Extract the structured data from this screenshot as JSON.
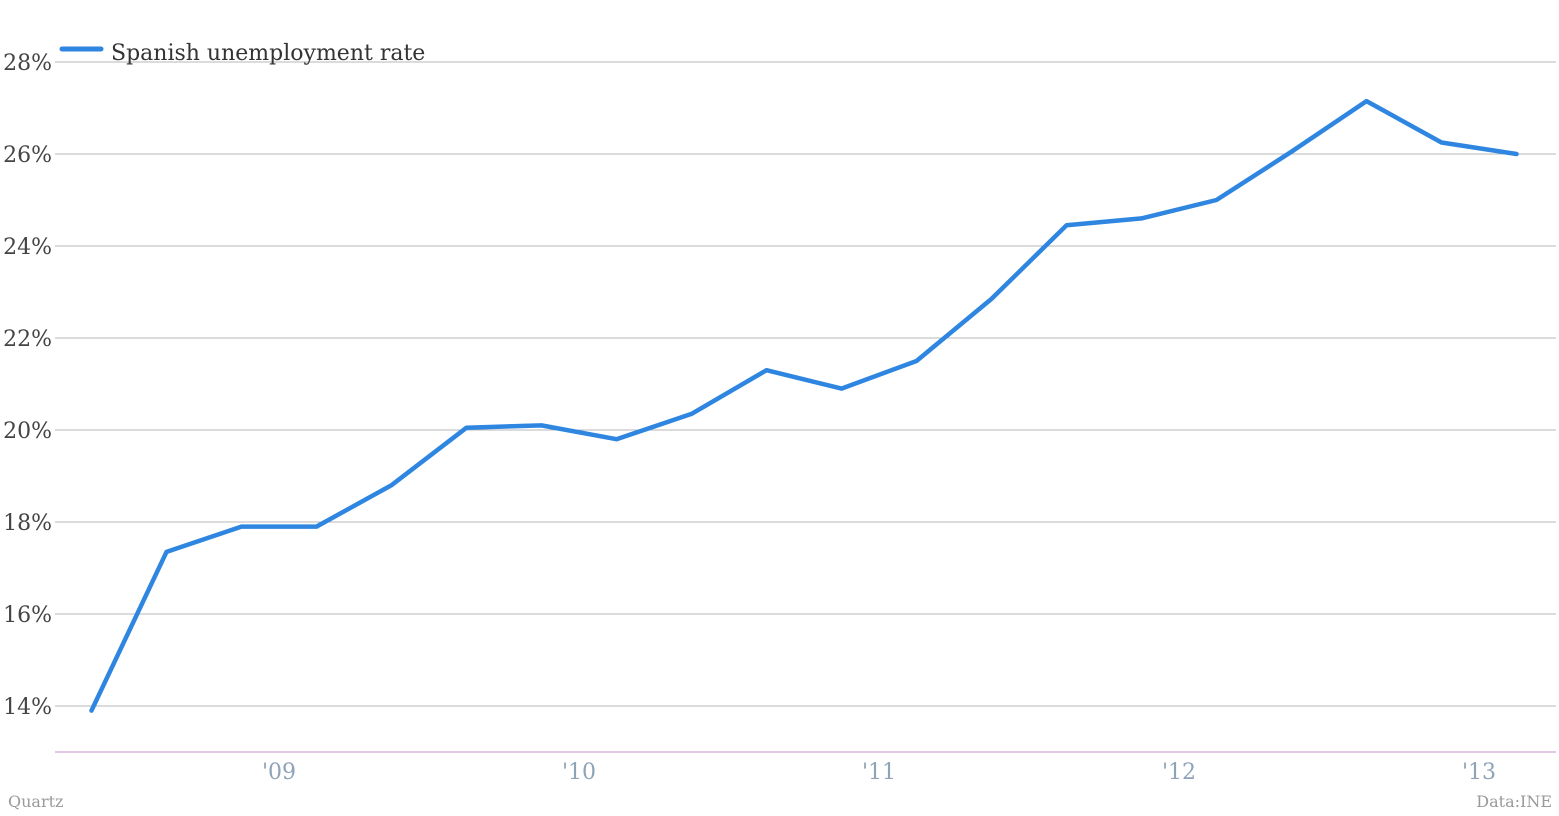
{
  "chart_data": {
    "type": "line",
    "title": "",
    "xlabel": "",
    "ylabel": "",
    "ylim": [
      13,
      28
    ],
    "yticks": [
      14,
      16,
      18,
      20,
      22,
      24,
      26,
      28
    ],
    "ytick_labels": [
      "14%",
      "16%",
      "18%",
      "20%",
      "22%",
      "24%",
      "26%",
      "28%"
    ],
    "xlim": [
      2008.25,
      2013.25
    ],
    "xticks": [
      2009,
      2010,
      2011,
      2012,
      2013
    ],
    "xtick_labels": [
      "'09",
      "'10",
      "'11",
      "'12",
      "'13"
    ],
    "grid": true,
    "legend_position": "top-left",
    "series": [
      {
        "name": "Spanish unemployment rate",
        "color": "#2e86e0",
        "x": [
          2008.375,
          2008.625,
          2008.875,
          2009.125,
          2009.375,
          2009.625,
          2009.875,
          2010.125,
          2010.375,
          2010.625,
          2010.875,
          2011.125,
          2011.375,
          2011.625,
          2011.875,
          2012.125,
          2012.375,
          2012.625,
          2012.875,
          2013.125
        ],
        "y": [
          13.9,
          17.35,
          17.9,
          17.9,
          18.8,
          20.05,
          20.1,
          19.8,
          20.35,
          21.3,
          20.9,
          21.5,
          22.85,
          24.45,
          24.6,
          25.0,
          26.05,
          27.15,
          26.25,
          26.0
        ]
      }
    ]
  },
  "footer": {
    "source_left": "Quartz",
    "source_right": "Data:INE"
  }
}
